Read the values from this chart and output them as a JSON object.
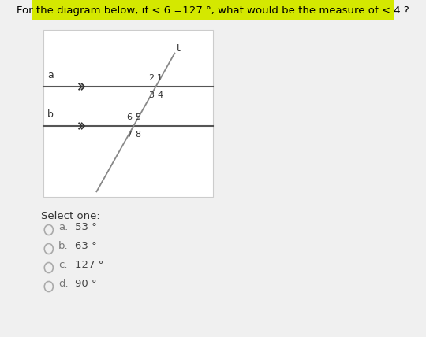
{
  "title": "For the diagram below, if < 6 =127 °, what would be the measure of < 4 ?",
  "title_bg": "#d4e800",
  "title_fontsize": 9.5,
  "bg_color": "#f0f0f0",
  "select_one": "Select one:",
  "options": [
    {
      "letter": "a.",
      "value": "53 °"
    },
    {
      "letter": "b.",
      "value": "63 °"
    },
    {
      "letter": "c.",
      "value": "127 °"
    },
    {
      "letter": "d.",
      "value": "90 °"
    }
  ],
  "option_fontsize": 9.5,
  "select_fontsize": 9.5
}
